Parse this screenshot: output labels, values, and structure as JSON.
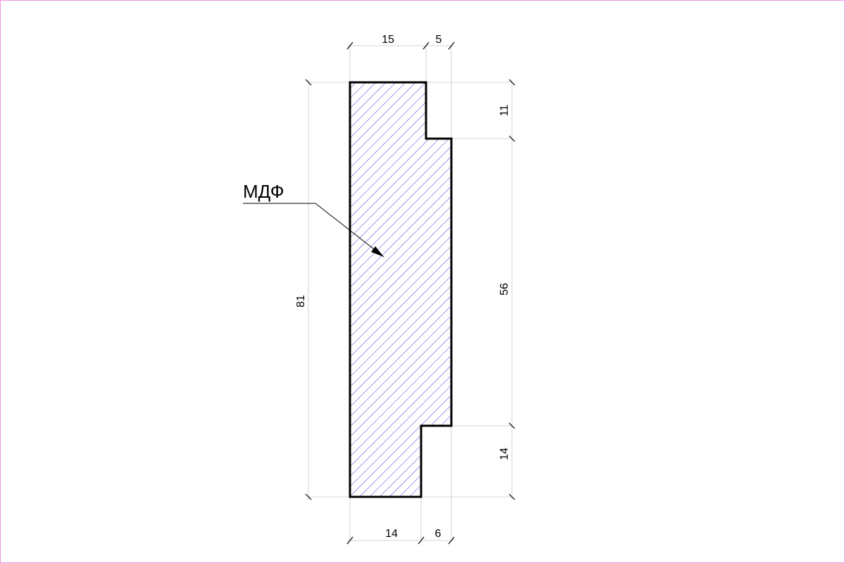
{
  "profile": {
    "material_label": "МДФ",
    "hatch_color": "#3b3bd6",
    "outline_color": "#000000",
    "frame_color": "#e99be9"
  },
  "dimensions": {
    "top_width_main": "15",
    "top_width_step": "5",
    "bottom_width_main": "14",
    "bottom_width_step": "6",
    "overall_height": "81",
    "right_top": "11",
    "right_middle": "56",
    "right_bottom": "14"
  }
}
